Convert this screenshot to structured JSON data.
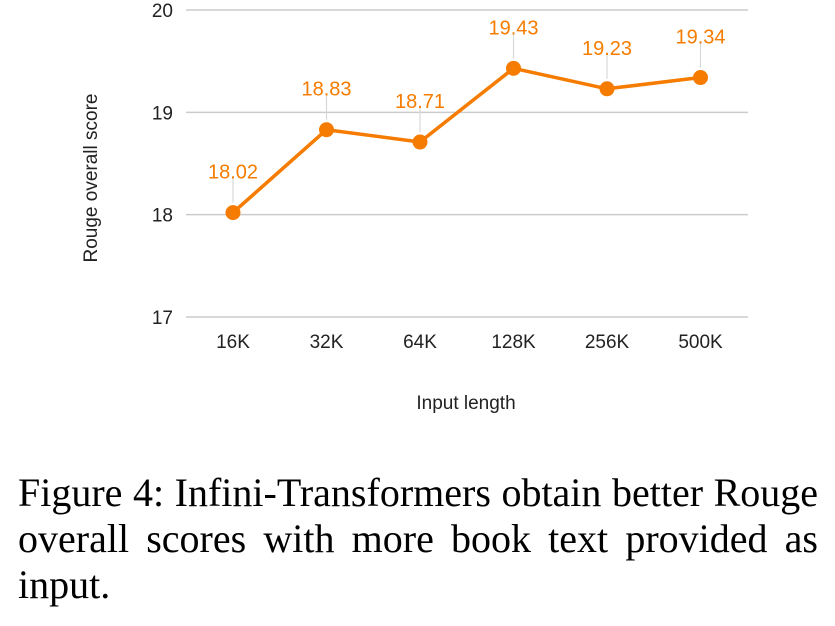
{
  "colors": {
    "series": "#f57c00",
    "grid": "#cccccc",
    "connector": "#d8d8d8"
  },
  "chart_data": {
    "type": "line",
    "xlabel": "Input length",
    "ylabel": "Rouge overall score",
    "categories": [
      "16K",
      "32K",
      "64K",
      "128K",
      "256K",
      "500K"
    ],
    "series": [
      {
        "values": [
          18.02,
          18.83,
          18.71,
          19.43,
          19.23,
          19.34
        ],
        "labels": [
          "18.02",
          "18.83",
          "18.71",
          "19.43",
          "19.23",
          "19.34"
        ]
      }
    ],
    "ylim": [
      17,
      20
    ],
    "yticks": [
      "17",
      "18",
      "19",
      "20"
    ],
    "grid": true,
    "marker": "circle",
    "data_labels": true
  },
  "caption": {
    "text": "Figure 4:  Infini-Transformers obtain better Rouge overall scores with more book text pro­vided as input."
  }
}
